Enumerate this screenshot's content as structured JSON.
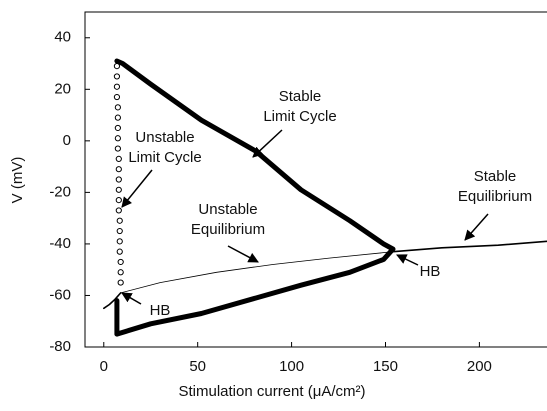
{
  "chart_data": {
    "type": "line",
    "xlabel": "Stimulation current (μA/cm²)",
    "ylabel": "V (mV)",
    "xlim": [
      -10,
      236
    ],
    "ylim": [
      -80,
      50
    ],
    "xticks": [
      0,
      50,
      100,
      150,
      200
    ],
    "yticks": [
      -80,
      -60,
      -40,
      -20,
      0,
      20,
      40
    ],
    "series": [
      {
        "color": "#000000",
        "width": 5,
        "x": [
          7,
          10,
          25,
          52,
          81,
          105,
          131,
          149,
          154,
          149,
          131,
          105,
          52,
          25,
          7,
          7
        ],
        "values": [
          31,
          30,
          22,
          8,
          -4,
          -19,
          -31,
          -40,
          -42,
          -46,
          -51,
          -56,
          -67,
          -71,
          -75,
          -62
        ]
      },
      {
        "color": "#000000",
        "width": 1,
        "marker": "circle-open",
        "x": [
          7,
          7,
          7,
          7,
          7.5,
          7.5,
          7.5,
          7.5,
          7.5,
          8,
          8,
          8,
          8,
          8,
          8,
          8.5,
          8.5,
          8.5,
          8.5,
          9,
          9,
          9
        ],
        "values": [
          29,
          25,
          21,
          17,
          13,
          9,
          5,
          1,
          -3,
          -7,
          -11,
          -15,
          -19,
          -23,
          -27,
          -31,
          -35,
          -39,
          -43,
          -47,
          -51,
          -55
        ]
      },
      {
        "color": "#000000",
        "width": 0.8,
        "x": [
          9,
          30,
          60,
          90,
          120,
          154
        ],
        "values": [
          -59,
          -55,
          -51,
          -48,
          -45.5,
          -43
        ]
      },
      {
        "color": "#000000",
        "width": 1.6,
        "x": [
          154,
          180,
          210,
          236
        ],
        "values": [
          -43,
          -41.5,
          -40.5,
          -39
        ]
      },
      {
        "color": "#000000",
        "width": 1.6,
        "x": [
          0,
          3,
          6,
          9
        ],
        "values": [
          -65,
          -63.5,
          -61.5,
          -59
        ]
      }
    ],
    "annotations": [
      {
        "text": [
          "Stable",
          "Limit Cycle"
        ]
      },
      {
        "text": [
          "Unstable",
          "Limit Cycle"
        ]
      },
      {
        "text": [
          "Unstable",
          "Equilibrium"
        ]
      },
      {
        "text": [
          "Stable",
          "Equilibrium"
        ]
      },
      {
        "text": [
          "HB"
        ]
      },
      {
        "text": [
          "HB"
        ]
      }
    ]
  }
}
